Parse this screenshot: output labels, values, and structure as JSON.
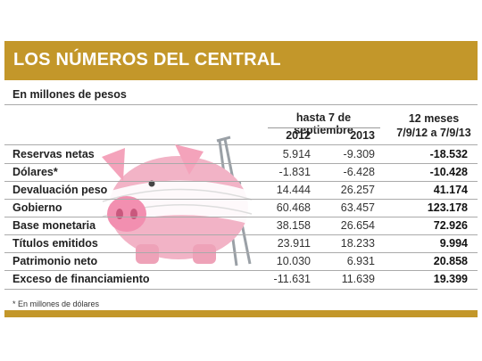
{
  "title": "LOS NÚMEROS DEL CENTRAL",
  "subtitle": "En millones de pesos",
  "header": {
    "group": "hasta 7 de septiembre",
    "col2012": "2012",
    "col2013": "2013",
    "twelve_months_1": "12 meses",
    "twelve_months_2": "7/9/12 a 7/9/13"
  },
  "rows": [
    {
      "label": "Reservas netas",
      "v2012": "5.914",
      "v2013": "-9.309",
      "v12m": "-18.532"
    },
    {
      "label": "Dólares*",
      "v2012": "-1.831",
      "v2013": "-6.428",
      "v12m": "-10.428"
    },
    {
      "label": "Devaluación peso",
      "v2012": "14.444",
      "v2013": "26.257",
      "v12m": "41.174"
    },
    {
      "label": "Gobierno",
      "v2012": "60.468",
      "v2013": "63.457",
      "v12m": "123.178"
    },
    {
      "label": "Base monetaria",
      "v2012": "38.158",
      "v2013": "26.654",
      "v12m": "72.926"
    },
    {
      "label": "Títulos emitidos",
      "v2012": "23.911",
      "v2013": "18.233",
      "v12m": "9.994"
    },
    {
      "label": "Patrimonio neto",
      "v2012": "10.030",
      "v2013": "6.931",
      "v12m": "20.858"
    },
    {
      "label": "Exceso de financiamiento",
      "v2012": "-11.631",
      "v2013": "11.639",
      "v12m": "19.399"
    }
  ],
  "footnote": "* En millones de dólares",
  "colors": {
    "banner": "#c3972a",
    "pig": "#f2b3c6"
  },
  "illustration": "piggy-bank-with-crutches"
}
